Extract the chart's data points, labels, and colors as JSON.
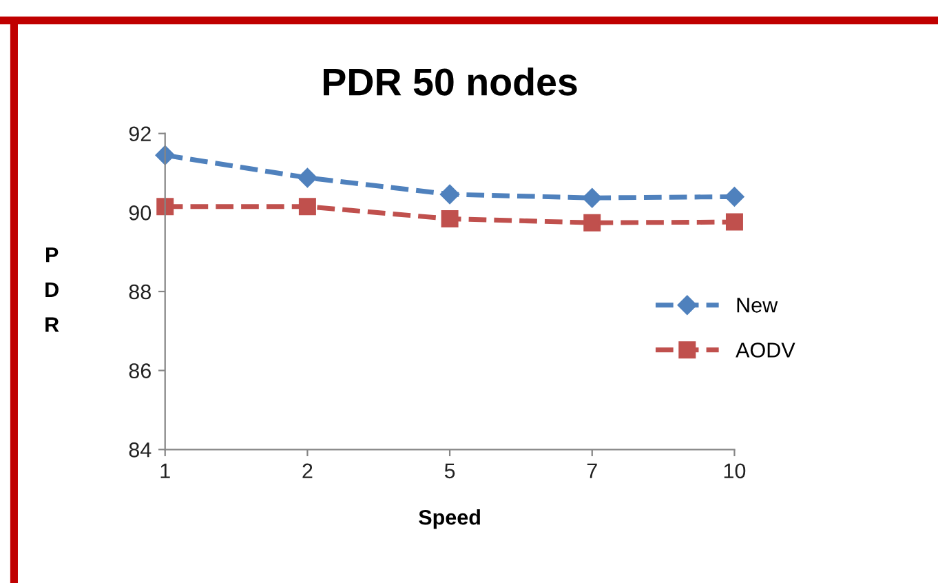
{
  "chart_data": {
    "type": "line",
    "title": "PDR 50 nodes",
    "xlabel": "Speed",
    "ylabel": "PDR",
    "categories": [
      "1",
      "2",
      "5",
      "7",
      "10"
    ],
    "series": [
      {
        "name": "New",
        "color": "#4f81bd",
        "marker": "diamond",
        "values": [
          91.45,
          90.88,
          90.46,
          90.37,
          90.4
        ]
      },
      {
        "name": "AODV",
        "color": "#c0504d",
        "marker": "square",
        "values": [
          90.15,
          90.15,
          89.84,
          89.74,
          89.76
        ]
      }
    ],
    "ylim": [
      84,
      92
    ],
    "yticks": [
      84,
      86,
      88,
      90,
      92
    ],
    "grid": false,
    "legend": "right",
    "line_style": "dashed"
  }
}
